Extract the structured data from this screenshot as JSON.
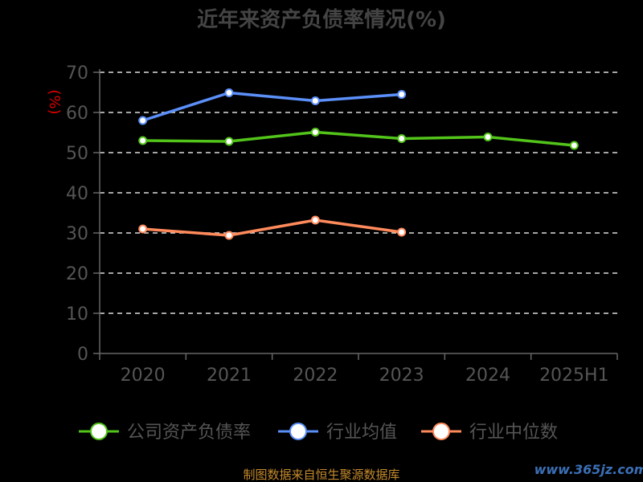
{
  "chart_data": {
    "type": "line",
    "title": "近年来资产负债率情况(%)",
    "ylabel": "(%)",
    "categories": [
      "2020",
      "2021",
      "2022",
      "2023",
      "2024",
      "2025H1"
    ],
    "ylim": [
      0,
      70
    ],
    "yticks": [
      0,
      10,
      20,
      30,
      40,
      50,
      60,
      70
    ],
    "grid": true,
    "legend_position": "bottom",
    "series": [
      {
        "name": "公司资产负债率",
        "color": "#52c41a",
        "values": [
          53.0,
          52.8,
          55.1,
          53.5,
          53.9,
          51.8
        ]
      },
      {
        "name": "行业均值",
        "color": "#5b8ff9",
        "values": [
          58.0,
          64.9,
          62.9,
          64.5,
          null,
          null
        ]
      },
      {
        "name": "行业中位数",
        "color": "#ff8a5c",
        "values": [
          31.0,
          29.4,
          33.2,
          30.2,
          null,
          null
        ]
      }
    ]
  },
  "footer": {
    "source": "制图数据来自恒生聚源数据库",
    "watermark": "www.365jz.com"
  }
}
